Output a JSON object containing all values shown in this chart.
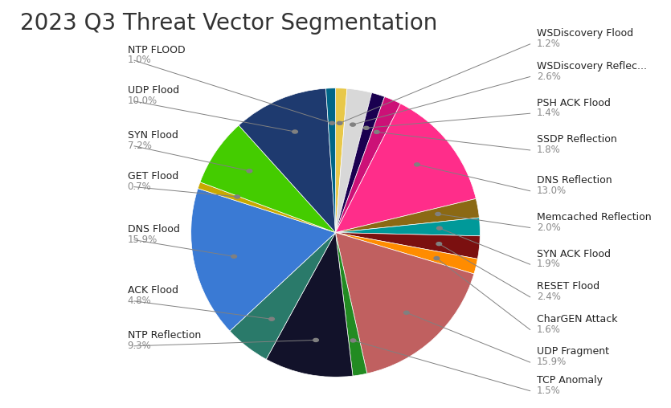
{
  "title": "2023 Q3 Threat Vector Segmentation",
  "segments": [
    {
      "label": "WSDiscovery Flood",
      "value": 1.2,
      "color": "#E8C84A"
    },
    {
      "label": "WSDiscovery Reflec...",
      "value": 2.6,
      "color": "#D8D8D8"
    },
    {
      "label": "PSH ACK Flood",
      "value": 1.4,
      "color": "#1A0050"
    },
    {
      "label": "SSDP Reflection",
      "value": 1.8,
      "color": "#CC1177"
    },
    {
      "label": "DNS Reflection",
      "value": 13.0,
      "color": "#FF2D8A"
    },
    {
      "label": "Memcached Reflection",
      "value": 2.0,
      "color": "#8B6914"
    },
    {
      "label": "SYN ACK Flood",
      "value": 1.9,
      "color": "#009999"
    },
    {
      "label": "RESET Flood",
      "value": 2.4,
      "color": "#7B1010"
    },
    {
      "label": "CharGEN Attack",
      "value": 1.6,
      "color": "#FF8C00"
    },
    {
      "label": "UDP Fragment",
      "value": 15.9,
      "color": "#C06060"
    },
    {
      "label": "TCP Anomaly",
      "value": 1.5,
      "color": "#228B22"
    },
    {
      "label": "NTP Reflection",
      "value": 9.3,
      "color": "#12122A"
    },
    {
      "label": "ACK Flood",
      "value": 4.8,
      "color": "#2A7A6A"
    },
    {
      "label": "DNS Flood",
      "value": 15.9,
      "color": "#3A7AD4"
    },
    {
      "label": "GET Flood",
      "value": 0.7,
      "color": "#C8A800"
    },
    {
      "label": "SYN Flood",
      "value": 7.2,
      "color": "#44CC00"
    },
    {
      "label": "UDP Flood",
      "value": 10.0,
      "color": "#1E3A6F"
    },
    {
      "label": "NTP FLOOD",
      "value": 1.0,
      "color": "#006688"
    }
  ],
  "background_color": "#FFFFFF",
  "title_fontsize": 20,
  "label_fontsize": 9,
  "value_fontsize": 8.5
}
